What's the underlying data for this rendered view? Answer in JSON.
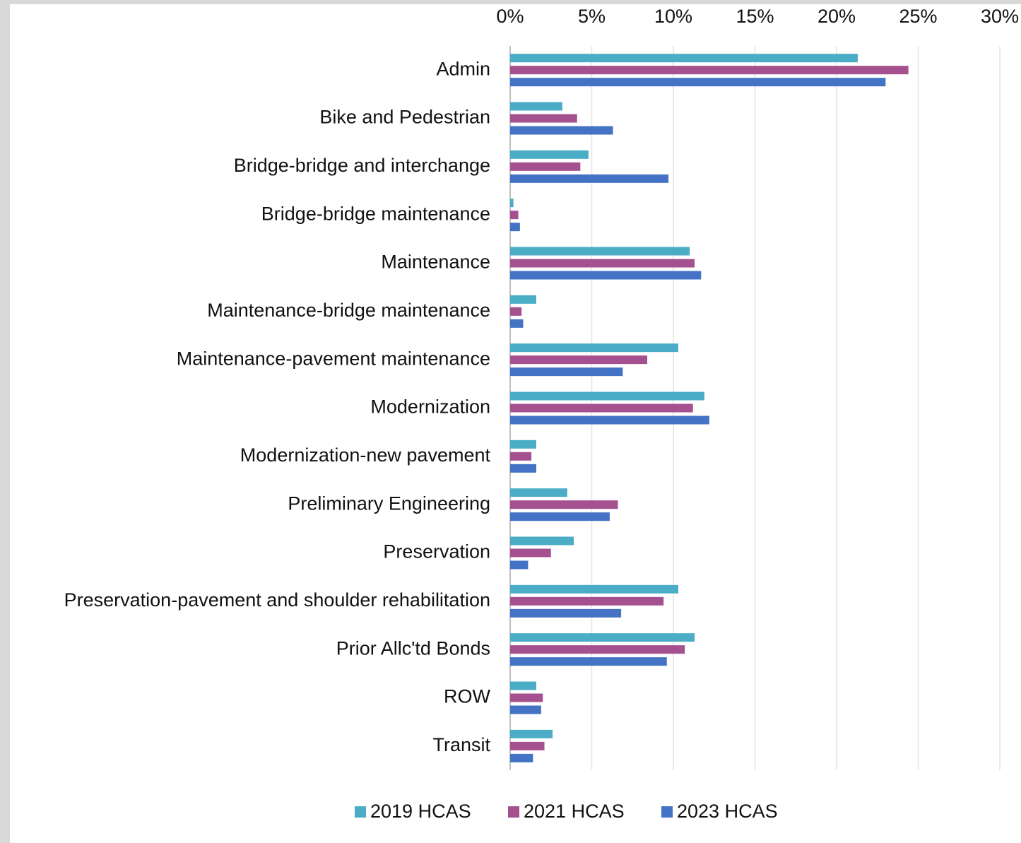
{
  "chart_data": {
    "type": "bar",
    "orientation": "horizontal",
    "categories": [
      "Admin",
      "Bike and Pedestrian",
      "Bridge-bridge and interchange",
      "Bridge-bridge maintenance",
      "Maintenance",
      "Maintenance-bridge maintenance",
      "Maintenance-pavement maintenance",
      "Modernization",
      "Modernization-new pavement",
      "Preliminary Engineering",
      "Preservation",
      "Preservation-pavement and shoulder rehabilitation",
      "Prior Allc'td Bonds",
      "ROW",
      "Transit"
    ],
    "series": [
      {
        "name": "2019 HCAS",
        "color": "#4bacc6",
        "values": [
          21.3,
          3.2,
          4.8,
          0.2,
          11.0,
          1.6,
          10.3,
          11.9,
          1.6,
          3.5,
          3.9,
          10.3,
          11.3,
          1.6,
          2.6
        ]
      },
      {
        "name": "2021 HCAS",
        "color": "#a5508f",
        "values": [
          24.4,
          4.1,
          4.3,
          0.5,
          11.3,
          0.7,
          8.4,
          11.2,
          1.3,
          6.6,
          2.5,
          9.4,
          10.7,
          2.0,
          2.1
        ]
      },
      {
        "name": "2023 HCAS",
        "color": "#4472c4",
        "values": [
          23.0,
          6.3,
          9.7,
          0.6,
          11.7,
          0.8,
          6.9,
          12.2,
          1.6,
          6.1,
          1.1,
          6.8,
          9.6,
          1.9,
          1.4
        ]
      }
    ],
    "xlim": [
      0,
      30
    ],
    "xticks": [
      {
        "value": 0,
        "label": "0%"
      },
      {
        "value": 5,
        "label": "5%"
      },
      {
        "value": 10,
        "label": "10%"
      },
      {
        "value": 15,
        "label": "15%"
      },
      {
        "value": 20,
        "label": "20%"
      },
      {
        "value": 25,
        "label": "25%"
      },
      {
        "value": 30,
        "label": "30%"
      }
    ],
    "grid": true,
    "legend": "bottom"
  }
}
